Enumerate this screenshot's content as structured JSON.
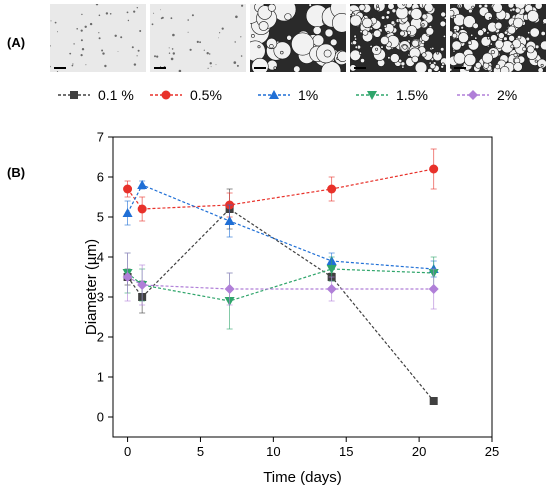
{
  "panels": {
    "a_label": "(A)",
    "b_label": "(B)"
  },
  "micrographs": [
    {
      "style": "light"
    },
    {
      "style": "light"
    },
    {
      "style": "bubbles-large"
    },
    {
      "style": "bubbles-dense"
    },
    {
      "style": "bubbles-dense"
    }
  ],
  "chart_data": {
    "type": "line",
    "xlabel": "Time (days)",
    "ylabel": "Diameter (µm)",
    "xlim": [
      -1,
      25
    ],
    "ylim": [
      -0.5,
      7
    ],
    "xticks": [
      0,
      5,
      10,
      15,
      20,
      25
    ],
    "yticks": [
      0,
      1,
      2,
      3,
      4,
      5,
      6,
      7
    ],
    "line_style": "dashed",
    "legend_position": "top",
    "series": [
      {
        "name": "0.1 %",
        "color": "#404040",
        "marker": "square",
        "x": [
          0,
          1,
          7,
          14,
          21
        ],
        "y": [
          3.5,
          3.0,
          5.2,
          3.5,
          0.4
        ],
        "err": [
          0.2,
          0.4,
          0.5,
          0.1,
          0.05
        ]
      },
      {
        "name": "0.5%",
        "color": "#e8312a",
        "marker": "circle",
        "x": [
          0,
          1,
          7,
          14,
          21
        ],
        "y": [
          5.7,
          5.2,
          5.3,
          5.7,
          6.2
        ],
        "err": [
          0.2,
          0.3,
          0.3,
          0.3,
          0.5
        ]
      },
      {
        "name": "1%",
        "color": "#1f6fd6",
        "marker": "triangle-up",
        "x": [
          0,
          1,
          7,
          14,
          21
        ],
        "y": [
          5.1,
          5.8,
          4.9,
          3.9,
          3.7
        ],
        "err": [
          0.3,
          0.1,
          0.4,
          0.2,
          0.2
        ]
      },
      {
        "name": "1.5%",
        "color": "#2fa56b",
        "marker": "triangle-down",
        "x": [
          0,
          1,
          7,
          14,
          21
        ],
        "y": [
          3.6,
          3.3,
          2.9,
          3.7,
          3.6
        ],
        "err": [
          0.5,
          0.4,
          0.7,
          0.3,
          0.4
        ]
      },
      {
        "name": "2%",
        "color": "#b07fd8",
        "marker": "diamond",
        "x": [
          0,
          1,
          7,
          14,
          21
        ],
        "y": [
          3.5,
          3.3,
          3.2,
          3.2,
          3.2
        ],
        "err": [
          0.6,
          0.5,
          0.4,
          0.3,
          0.5
        ]
      }
    ]
  }
}
